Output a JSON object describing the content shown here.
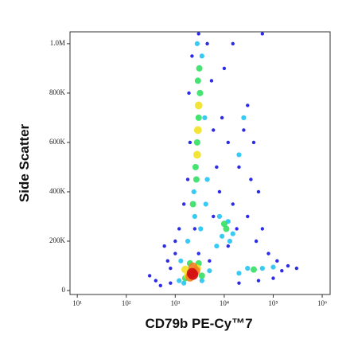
{
  "chart_data": {
    "type": "scatter",
    "xlabel": "CD79b PE-Cy™7",
    "ylabel": "Side Scatter",
    "xscale": "log",
    "xlim": [
      7.1,
      1450000
    ],
    "xticks": [
      {
        "value": 10,
        "label": "10¹"
      },
      {
        "value": 100,
        "label": "10²"
      },
      {
        "value": 1000,
        "label": "10³"
      },
      {
        "value": 10000,
        "label": "10⁴"
      },
      {
        "value": 100000,
        "label": "10⁵"
      },
      {
        "value": 1000000,
        "label": "10⁶"
      }
    ],
    "ylim": [
      -16000,
      1048000
    ],
    "yticks": [
      0,
      {
        "value": 200000,
        "label": "200K"
      },
      {
        "value": 400000,
        "label": "400K"
      },
      {
        "value": 600000,
        "label": "600K"
      },
      {
        "value": 800000,
        "label": "800K"
      },
      {
        "value": 1000000,
        "label": "1.0M"
      }
    ],
    "series": [
      {
        "color": "#1414e6",
        "x": [
          300,
          500,
          800,
          1000,
          1200,
          600,
          400,
          1500,
          1800,
          2000,
          1900,
          2200,
          4500,
          5500,
          6000,
          7000,
          8000,
          15000,
          20000,
          25000,
          30000,
          40000,
          50000,
          60000,
          80000,
          120000,
          200000,
          300000,
          150000,
          100000,
          50000,
          20000,
          800,
          1000,
          3000,
          5000,
          12000,
          18000,
          30000,
          10000,
          15000,
          60000,
          3000,
          9000,
          12000,
          35000,
          45000,
          700,
          2500,
          6000
        ],
        "y": [
          60000,
          20000,
          90000,
          150000,
          250000,
          180000,
          40000,
          350000,
          450000,
          600000,
          800000,
          950000,
          1000000,
          850000,
          650000,
          500000,
          400000,
          350000,
          500000,
          650000,
          750000,
          600000,
          400000,
          250000,
          150000,
          120000,
          100000,
          90000,
          80000,
          50000,
          40000,
          30000,
          30000,
          200000,
          150000,
          120000,
          180000,
          250000,
          300000,
          900000,
          1000000,
          1040000,
          1040000,
          700000,
          600000,
          450000,
          200000,
          120000,
          250000,
          300000
        ]
      },
      {
        "color": "#22c4f2",
        "x": [
          1800,
          2500,
          2400,
          4200,
          3500,
          2800,
          4000,
          9000,
          12000,
          15000,
          8000,
          13000,
          30000,
          60000,
          100000,
          20000,
          1300,
          1200,
          3500,
          5000,
          1500,
          20000,
          25000,
          3300,
          4500,
          7000
        ],
        "y": [
          200000,
          300000,
          400000,
          350000,
          950000,
          1000000,
          700000,
          220000,
          280000,
          230000,
          300000,
          200000,
          90000,
          90000,
          95000,
          70000,
          120000,
          40000,
          40000,
          80000,
          30000,
          550000,
          700000,
          250000,
          450000,
          180000
        ]
      },
      {
        "color": "#32e064",
        "x": [
          2600,
          2800,
          3000,
          3200,
          2900,
          2700,
          3100,
          11000,
          10000,
          1600,
          3000,
          2000,
          3500,
          40000,
          2300
        ],
        "y": [
          500000,
          600000,
          700000,
          800000,
          850000,
          450000,
          900000,
          250000,
          270000,
          50000,
          110000,
          110000,
          60000,
          85000,
          350000
        ]
      },
      {
        "color": "#f2e222",
        "x": [
          2900,
          3000,
          2800,
          1800,
          2800,
          1600
        ],
        "y": [
          650000,
          750000,
          550000,
          60000,
          90000,
          85000
        ]
      },
      {
        "color": "#f28222",
        "x": [
          2000,
          2600,
          2300
        ],
        "y": [
          55000,
          80000,
          95000
        ]
      },
      {
        "color": "#d41212",
        "x": [
          2200,
          2300
        ],
        "y": [
          70000,
          65000
        ]
      }
    ]
  }
}
